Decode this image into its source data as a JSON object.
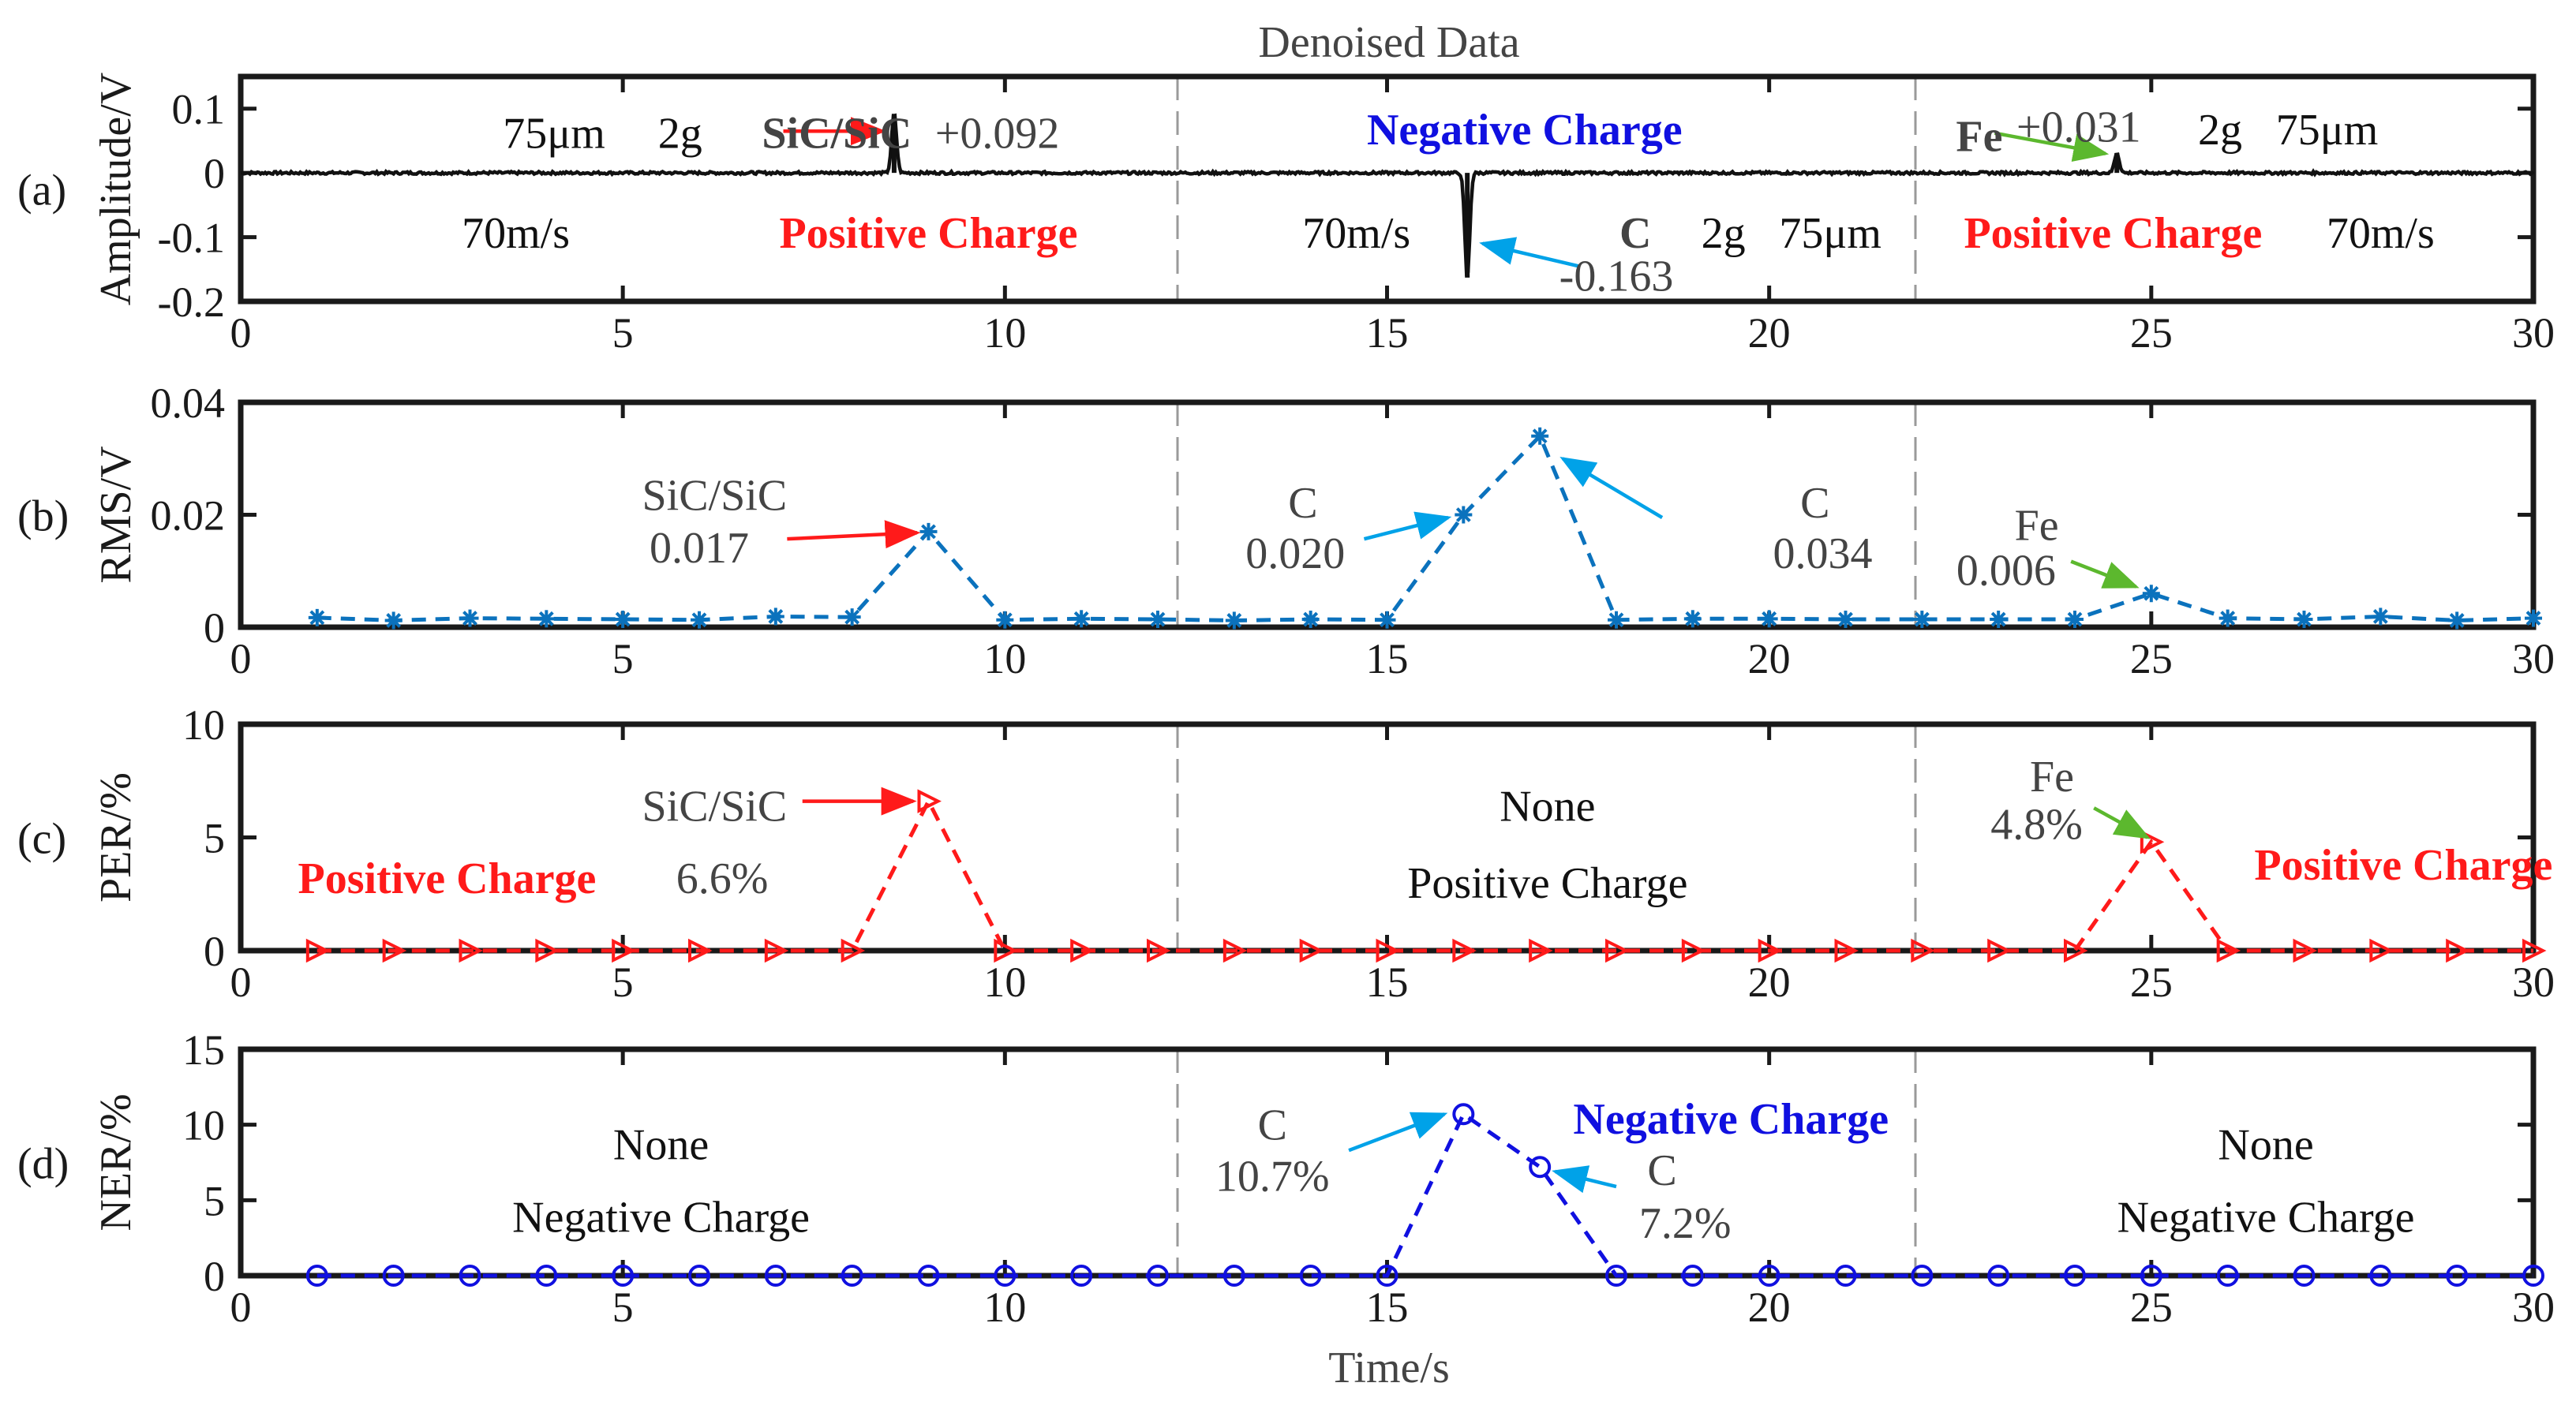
{
  "figure_title": "Denoised Data",
  "xlabel": "Time/s",
  "colors": {
    "black": "#111111",
    "red": "#ff1a1a",
    "blue": "#1010e0",
    "cyan": "#00a2e8",
    "green": "#5cb82e",
    "gray": "#444444",
    "steel": "#0b72bd"
  },
  "chart_data": [
    {
      "type": "line",
      "panel": "(a)",
      "ylabel": "Amplitude/V",
      "xlim": [
        0,
        30
      ],
      "ylim": [
        -0.2,
        0.15
      ],
      "xticks": [
        0,
        5,
        10,
        15,
        20,
        25,
        30
      ],
      "yticks": [
        0.1,
        0,
        -0.1,
        -0.2
      ],
      "ytick_labels": [
        "0.1",
        "0",
        "-0.1",
        "-0.2"
      ],
      "series": [
        {
          "name": "signal",
          "color": "#111111",
          "spikes": [
            {
              "t": 8.55,
              "v": 0.092
            },
            {
              "t": 16.05,
              "v": -0.163
            },
            {
              "t": 24.55,
              "v": 0.031
            }
          ]
        }
      ],
      "annotations": [
        {
          "text": "75μm",
          "color": "#111111",
          "bold": false,
          "t": 4.1,
          "v": 0.062
        },
        {
          "text": "2g",
          "color": "#111111",
          "bold": false,
          "t": 5.75,
          "v": 0.062
        },
        {
          "text": "SiC/SiC",
          "color": "#444444",
          "bold": true,
          "t": 7.8,
          "v": 0.062
        },
        {
          "text": "+0.092",
          "color": "#444444",
          "bold": false,
          "t": 9.9,
          "v": 0.062
        },
        {
          "text": "70m/s",
          "color": "#111111",
          "bold": false,
          "t": 3.6,
          "v": -0.093
        },
        {
          "text": "Positive Charge",
          "color": "#ff1a1a",
          "bold": true,
          "t": 9.0,
          "v": -0.093
        },
        {
          "text": "Negative Charge",
          "color": "#1010e0",
          "bold": true,
          "t": 16.8,
          "v": 0.068
        },
        {
          "text": "70m/s",
          "color": "#111111",
          "bold": false,
          "t": 14.6,
          "v": -0.093
        },
        {
          "text": "C",
          "color": "#444444",
          "bold": true,
          "t": 18.25,
          "v": -0.093
        },
        {
          "text": "2g",
          "color": "#111111",
          "bold": false,
          "t": 19.4,
          "v": -0.093
        },
        {
          "text": "75μm",
          "color": "#111111",
          "bold": false,
          "t": 20.8,
          "v": -0.093
        },
        {
          "text": "-0.163",
          "color": "#444444",
          "bold": false,
          "t": 18.0,
          "v": -0.16
        },
        {
          "text": "Fe",
          "color": "#444444",
          "bold": true,
          "t": 22.75,
          "v": 0.057
        },
        {
          "text": "+0.031",
          "color": "#444444",
          "bold": false,
          "t": 24.05,
          "v": 0.072
        },
        {
          "text": "2g",
          "color": "#111111",
          "bold": false,
          "t": 25.9,
          "v": 0.068
        },
        {
          "text": "75μm",
          "color": "#111111",
          "bold": false,
          "t": 27.3,
          "v": 0.068
        },
        {
          "text": "Positive Charge",
          "color": "#ff1a1a",
          "bold": true,
          "t": 24.5,
          "v": -0.093
        },
        {
          "text": "70m/s",
          "color": "#111111",
          "bold": false,
          "t": 28.0,
          "v": -0.093
        }
      ],
      "arrows": [
        {
          "color": "#ff1a1a",
          "from": [
            7.1,
            0.065
          ],
          "to": [
            8.4,
            0.065
          ]
        },
        {
          "color": "#00a2e8",
          "from": [
            17.5,
            -0.145
          ],
          "to": [
            16.25,
            -0.11
          ]
        },
        {
          "color": "#5cb82e",
          "from": [
            22.95,
            0.062
          ],
          "to": [
            24.4,
            0.03
          ]
        }
      ]
    },
    {
      "type": "line",
      "panel": "(b)",
      "ylabel": "RMS/V",
      "marker": "star",
      "color": "#0b72bd",
      "xlim": [
        0,
        30
      ],
      "ylim": [
        0,
        0.04
      ],
      "xticks": [
        0,
        5,
        10,
        15,
        20,
        25,
        30
      ],
      "yticks": [
        0,
        0.02,
        0.04
      ],
      "ytick_labels": [
        "0",
        "0.02",
        "0.04"
      ],
      "x": [
        1,
        2,
        3,
        4,
        5,
        6,
        7,
        8,
        9,
        10,
        11,
        12,
        13,
        14,
        15,
        16,
        17,
        18,
        19,
        20,
        21,
        22,
        23,
        24,
        25,
        26,
        27,
        28,
        29,
        30
      ],
      "values": [
        0.0017,
        0.0012,
        0.0016,
        0.0015,
        0.0014,
        0.0013,
        0.0019,
        0.0018,
        0.017,
        0.0013,
        0.0015,
        0.0014,
        0.0012,
        0.0014,
        0.0013,
        0.02,
        0.034,
        0.0013,
        0.0015,
        0.0015,
        0.0014,
        0.0014,
        0.0014,
        0.0014,
        0.006,
        0.0016,
        0.0014,
        0.0019,
        0.0012,
        0.0016
      ],
      "annotations": [
        {
          "text": "SiC/SiC",
          "color": "#444444",
          "bold": false,
          "t": 6.2,
          "v": 0.0235
        },
        {
          "text": "0.017",
          "color": "#444444",
          "bold": false,
          "t": 6.0,
          "v": 0.0142
        },
        {
          "text": "C",
          "color": "#444444",
          "bold": false,
          "t": 13.9,
          "v": 0.0222
        },
        {
          "text": "0.020",
          "color": "#444444",
          "bold": false,
          "t": 13.8,
          "v": 0.0132
        },
        {
          "text": "C",
          "color": "#444444",
          "bold": false,
          "t": 20.6,
          "v": 0.0222
        },
        {
          "text": "0.034",
          "color": "#444444",
          "bold": false,
          "t": 20.7,
          "v": 0.0132
        },
        {
          "text": "Fe",
          "color": "#444444",
          "bold": false,
          "t": 23.5,
          "v": 0.0182
        },
        {
          "text": "0.006",
          "color": "#444444",
          "bold": false,
          "t": 23.1,
          "v": 0.0102
        }
      ],
      "arrows": [
        {
          "color": "#ff1a1a",
          "from": [
            7.15,
            0.0157
          ],
          "to": [
            8.85,
            0.0168
          ]
        },
        {
          "color": "#00a2e8",
          "from": [
            14.7,
            0.0157
          ],
          "to": [
            15.8,
            0.0195
          ]
        },
        {
          "color": "#00a2e8",
          "from": [
            18.6,
            0.0195
          ],
          "to": [
            17.3,
            0.03
          ]
        },
        {
          "color": "#5cb82e",
          "from": [
            23.95,
            0.0117
          ],
          "to": [
            24.8,
            0.0072
          ]
        }
      ]
    },
    {
      "type": "line",
      "panel": "(c)",
      "ylabel": "PER/%",
      "marker": "triangle-right",
      "color": "#ff1a1a",
      "xlim": [
        0,
        30
      ],
      "ylim": [
        0,
        10
      ],
      "xticks": [
        0,
        5,
        10,
        15,
        20,
        25,
        30
      ],
      "yticks": [
        0,
        5,
        10
      ],
      "ytick_labels": [
        "0",
        "5",
        "10"
      ],
      "x": [
        1,
        2,
        3,
        4,
        5,
        6,
        7,
        8,
        9,
        10,
        11,
        12,
        13,
        14,
        15,
        16,
        17,
        18,
        19,
        20,
        21,
        22,
        23,
        24,
        25,
        26,
        27,
        28,
        29,
        30
      ],
      "values": [
        0,
        0,
        0,
        0,
        0,
        0,
        0,
        0,
        6.6,
        0,
        0,
        0,
        0,
        0,
        0,
        0,
        0,
        0,
        0,
        0,
        0,
        0,
        0,
        0,
        4.8,
        0,
        0,
        0,
        0,
        0
      ],
      "annotations": [
        {
          "text": "SiC/SiC",
          "color": "#444444",
          "bold": false,
          "t": 6.2,
          "v": 6.4
        },
        {
          "text": "Positive Charge",
          "color": "#ff1a1a",
          "bold": true,
          "t": 2.7,
          "v": 3.2
        },
        {
          "text": "6.6%",
          "color": "#444444",
          "bold": false,
          "t": 6.3,
          "v": 3.2
        },
        {
          "text": "None",
          "color": "#111111",
          "bold": false,
          "t": 17.1,
          "v": 6.4
        },
        {
          "text": "Positive Charge",
          "color": "#111111",
          "bold": false,
          "t": 17.1,
          "v": 3.0
        },
        {
          "text": "Fe",
          "color": "#444444",
          "bold": false,
          "t": 23.7,
          "v": 7.7
        },
        {
          "text": "4.8%",
          "color": "#444444",
          "bold": false,
          "t": 23.5,
          "v": 5.6
        },
        {
          "text": "Positive Charge",
          "color": "#ff1a1a",
          "bold": true,
          "t": 28.3,
          "v": 3.8
        }
      ],
      "arrows": [
        {
          "color": "#ff1a1a",
          "from": [
            7.35,
            6.6
          ],
          "to": [
            8.8,
            6.6
          ]
        },
        {
          "color": "#5cb82e",
          "from": [
            24.25,
            6.3
          ],
          "to": [
            24.95,
            5.0
          ]
        }
      ]
    },
    {
      "type": "line",
      "panel": "(d)",
      "ylabel": "NER/%",
      "marker": "circle",
      "color": "#1010e0",
      "xlim": [
        0,
        30
      ],
      "ylim": [
        0,
        15
      ],
      "xticks": [
        0,
        5,
        10,
        15,
        20,
        25,
        30
      ],
      "yticks": [
        0,
        5,
        10,
        15
      ],
      "ytick_labels": [
        "0",
        "5",
        "10",
        "15"
      ],
      "x": [
        1,
        2,
        3,
        4,
        5,
        6,
        7,
        8,
        9,
        10,
        11,
        12,
        13,
        14,
        15,
        16,
        17,
        18,
        19,
        20,
        21,
        22,
        23,
        24,
        25,
        26,
        27,
        28,
        29,
        30
      ],
      "values": [
        0,
        0,
        0,
        0,
        0,
        0,
        0,
        0,
        0,
        0,
        0,
        0,
        0,
        0,
        0,
        10.7,
        7.2,
        0,
        0,
        0,
        0,
        0,
        0,
        0,
        0,
        0,
        0,
        0,
        0,
        0
      ],
      "annotations": [
        {
          "text": "None",
          "color": "#111111",
          "bold": false,
          "t": 5.5,
          "v": 8.7
        },
        {
          "text": "Negative Charge",
          "color": "#111111",
          "bold": false,
          "t": 5.5,
          "v": 3.9
        },
        {
          "text": "C",
          "color": "#444444",
          "bold": false,
          "t": 13.5,
          "v": 10.0
        },
        {
          "text": "10.7%",
          "color": "#444444",
          "bold": false,
          "t": 13.5,
          "v": 6.6
        },
        {
          "text": "Negative Charge",
          "color": "#1010e0",
          "bold": true,
          "t": 19.5,
          "v": 10.4
        },
        {
          "text": "C",
          "color": "#444444",
          "bold": false,
          "t": 18.6,
          "v": 7.0
        },
        {
          "text": "7.2%",
          "color": "#444444",
          "bold": false,
          "t": 18.9,
          "v": 3.5
        },
        {
          "text": "None",
          "color": "#111111",
          "bold": false,
          "t": 26.5,
          "v": 8.7
        },
        {
          "text": "Negative Charge",
          "color": "#111111",
          "bold": false,
          "t": 26.5,
          "v": 3.9
        }
      ],
      "arrows": [
        {
          "color": "#00a2e8",
          "from": [
            14.5,
            8.3
          ],
          "to": [
            15.75,
            10.7
          ]
        },
        {
          "color": "#00a2e8",
          "from": [
            18.0,
            5.9
          ],
          "to": [
            17.2,
            6.9
          ]
        }
      ]
    }
  ]
}
